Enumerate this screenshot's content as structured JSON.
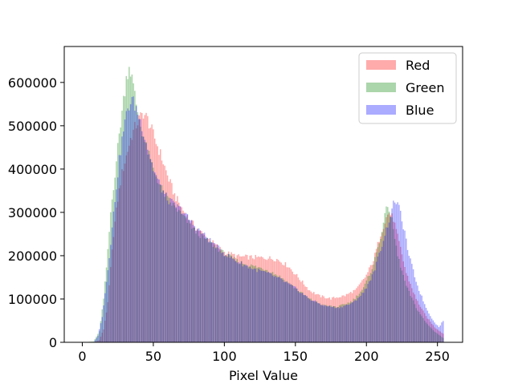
{
  "chart_data": {
    "type": "bar",
    "title": "",
    "xlabel": "Pixel Value",
    "ylabel": "",
    "xlim": [
      -12.7,
      267.7
    ],
    "ylim": [
      0,
      683000
    ],
    "xticks": [
      0,
      50,
      100,
      150,
      200,
      250
    ],
    "xtick_labels": [
      "0",
      "50",
      "100",
      "150",
      "200",
      "250"
    ],
    "yticks": [
      0,
      100000,
      200000,
      300000,
      400000,
      500000,
      600000
    ],
    "ytick_labels": [
      "0",
      "100000",
      "200000",
      "300000",
      "400000",
      "500000",
      "600000"
    ],
    "grid": false,
    "legend": "top-right",
    "bin_width": 1,
    "series": [
      {
        "name": "Red",
        "color": "#ff0000",
        "alpha": 0.33,
        "knots": [
          [
            0,
            0
          ],
          [
            8,
            0
          ],
          [
            12,
            5000
          ],
          [
            15,
            30000
          ],
          [
            18,
            90000
          ],
          [
            20,
            170000
          ],
          [
            22,
            250000
          ],
          [
            25,
            330000
          ],
          [
            28,
            390000
          ],
          [
            31,
            430000
          ],
          [
            34,
            470000
          ],
          [
            37,
            495000
          ],
          [
            40,
            515000
          ],
          [
            43,
            530000
          ],
          [
            46,
            515000
          ],
          [
            50,
            480000
          ],
          [
            55,
            435000
          ],
          [
            60,
            385000
          ],
          [
            65,
            340000
          ],
          [
            70,
            310000
          ],
          [
            75,
            285000
          ],
          [
            80,
            265000
          ],
          [
            90,
            235000
          ],
          [
            100,
            208000
          ],
          [
            110,
            198000
          ],
          [
            120,
            196000
          ],
          [
            130,
            195000
          ],
          [
            137,
            192000
          ],
          [
            145,
            176000
          ],
          [
            152,
            150000
          ],
          [
            160,
            120000
          ],
          [
            167,
            107000
          ],
          [
            175,
            101000
          ],
          [
            185,
            108000
          ],
          [
            193,
            122000
          ],
          [
            200,
            155000
          ],
          [
            205,
            190000
          ],
          [
            210,
            250000
          ],
          [
            214,
            288000
          ],
          [
            216,
            300000
          ],
          [
            219,
            285000
          ],
          [
            223,
            230000
          ],
          [
            228,
            160000
          ],
          [
            235,
            100000
          ],
          [
            242,
            60000
          ],
          [
            248,
            35000
          ],
          [
            252,
            25000
          ],
          [
            254,
            20000
          ]
        ]
      },
      {
        "name": "Green",
        "color": "#008000",
        "alpha": 0.33,
        "knots": [
          [
            0,
            0
          ],
          [
            8,
            2000
          ],
          [
            12,
            25000
          ],
          [
            15,
            100000
          ],
          [
            18,
            210000
          ],
          [
            20,
            300000
          ],
          [
            23,
            390000
          ],
          [
            26,
            480000
          ],
          [
            29,
            560000
          ],
          [
            31,
            610000
          ],
          [
            33,
            640000
          ],
          [
            35,
            610000
          ],
          [
            38,
            550000
          ],
          [
            41,
            500000
          ],
          [
            45,
            450000
          ],
          [
            50,
            400000
          ],
          [
            55,
            360000
          ],
          [
            60,
            330000
          ],
          [
            70,
            295000
          ],
          [
            80,
            255000
          ],
          [
            90,
            230000
          ],
          [
            100,
            205000
          ],
          [
            110,
            186000
          ],
          [
            120,
            176000
          ],
          [
            130,
            168000
          ],
          [
            140,
            150000
          ],
          [
            150,
            125000
          ],
          [
            160,
            100000
          ],
          [
            170,
            85000
          ],
          [
            180,
            82000
          ],
          [
            190,
            95000
          ],
          [
            198,
            125000
          ],
          [
            205,
            180000
          ],
          [
            210,
            245000
          ],
          [
            213,
            290000
          ],
          [
            215,
            320000
          ],
          [
            218,
            280000
          ],
          [
            222,
            200000
          ],
          [
            228,
            130000
          ],
          [
            235,
            80000
          ],
          [
            242,
            45000
          ],
          [
            248,
            25000
          ],
          [
            252,
            15000
          ],
          [
            254,
            10000
          ]
        ]
      },
      {
        "name": "Blue",
        "color": "#0000ff",
        "alpha": 0.33,
        "knots": [
          [
            0,
            0
          ],
          [
            8,
            0
          ],
          [
            11,
            15000
          ],
          [
            14,
            60000
          ],
          [
            17,
            140000
          ],
          [
            20,
            230000
          ],
          [
            23,
            330000
          ],
          [
            26,
            420000
          ],
          [
            29,
            490000
          ],
          [
            32,
            540000
          ],
          [
            35,
            560000
          ],
          [
            38,
            540000
          ],
          [
            42,
            500000
          ],
          [
            46,
            450000
          ],
          [
            50,
            400000
          ],
          [
            55,
            360000
          ],
          [
            60,
            330000
          ],
          [
            70,
            305000
          ],
          [
            80,
            265000
          ],
          [
            90,
            235000
          ],
          [
            100,
            205000
          ],
          [
            110,
            185000
          ],
          [
            120,
            170000
          ],
          [
            130,
            160000
          ],
          [
            140,
            145000
          ],
          [
            150,
            125000
          ],
          [
            160,
            100000
          ],
          [
            170,
            85000
          ],
          [
            180,
            80000
          ],
          [
            190,
            90000
          ],
          [
            198,
            115000
          ],
          [
            205,
            160000
          ],
          [
            210,
            215000
          ],
          [
            214,
            260000
          ],
          [
            218,
            305000
          ],
          [
            220,
            330000
          ],
          [
            222,
            320000
          ],
          [
            225,
            285000
          ],
          [
            230,
            200000
          ],
          [
            236,
            130000
          ],
          [
            242,
            80000
          ],
          [
            247,
            50000
          ],
          [
            251,
            35000
          ],
          [
            254,
            50000
          ]
        ]
      }
    ]
  }
}
